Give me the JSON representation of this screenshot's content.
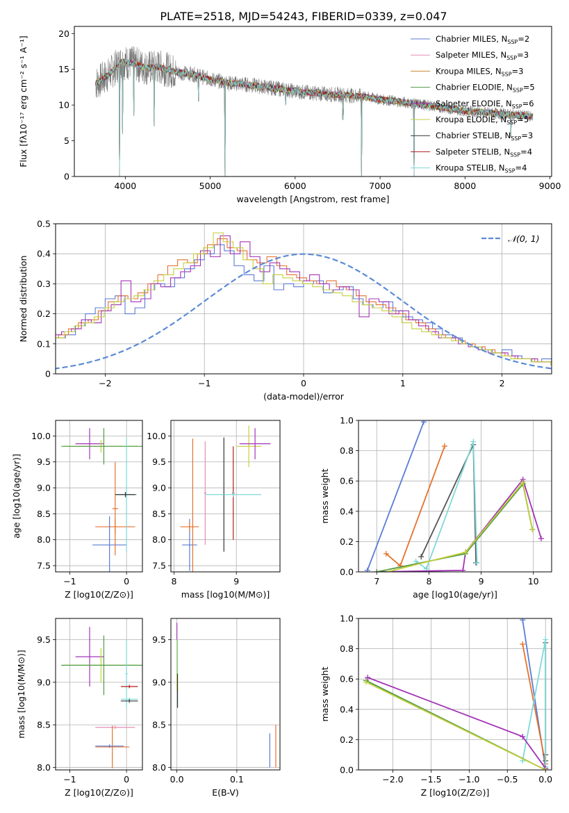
{
  "figure": {
    "title": "PLATE=2518, MJD=54243, FIBERID=0339, z=0.047"
  },
  "chart_data": [
    {
      "id": "spectrum",
      "type": "line",
      "xlabel": "wavelength [Angstrom, rest frame]",
      "ylabel": "Flux [fλ10⁻¹⁷ erg cm⁻² s⁻¹ A⁻¹]",
      "xlim": [
        3400,
        9020
      ],
      "ylim": [
        0,
        21
      ],
      "xticks": [
        4000,
        5000,
        6000,
        7000,
        8000,
        9000
      ],
      "yticks": [
        0,
        5,
        10,
        15,
        20
      ],
      "grid": false,
      "legend_position": "top-right",
      "legend": [
        {
          "label": "Chabrier MILES, N_SSP=2",
          "color": "#5b7bd6"
        },
        {
          "label": "Salpeter MILES, N_SSP=3",
          "color": "#e48fb7"
        },
        {
          "label": "Kroupa MILES, N_SSP=3",
          "color": "#c98a2e"
        },
        {
          "label": "Chabrier ELODIE, N_SSP=5",
          "color": "#4f9a45"
        },
        {
          "label": "Salpeter ELODIE, N_SSP=6",
          "color": "#a233b8"
        },
        {
          "label": "Kroupa ELODIE, N_SSP=5",
          "color": "#c4cf3c"
        },
        {
          "label": "Chabrier STELIB, N_SSP=3",
          "color": "#333333"
        },
        {
          "label": "Salpeter STELIB, N_SSP=4",
          "color": "#b31b1b"
        },
        {
          "label": "Kroupa STELIB, N_SSP=4",
          "color": "#7fd8d8"
        }
      ],
      "continuum": {
        "x": [
          3650,
          3800,
          3950,
          4100,
          4250,
          4400,
          4600,
          4800,
          5000,
          5200,
          5400,
          5600,
          5800,
          6000,
          6200,
          6400,
          6600,
          6800,
          7000,
          7200,
          7400,
          7600,
          7800,
          8000,
          8200,
          8400,
          8600,
          8800
        ],
        "y": [
          13.0,
          14.2,
          16.0,
          15.8,
          15.2,
          15.3,
          14.6,
          14.3,
          13.6,
          13.1,
          12.9,
          12.6,
          12.3,
          11.9,
          11.7,
          11.5,
          11.4,
          11.2,
          10.8,
          10.5,
          10.2,
          9.9,
          9.5,
          9.2,
          9.0,
          8.8,
          8.6,
          8.4
        ]
      },
      "absorption_spikes": [
        {
          "x": 3933,
          "y": 0
        },
        {
          "x": 3968,
          "y": 6.0
        },
        {
          "x": 4101,
          "y": 8.5
        },
        {
          "x": 4340,
          "y": 7.0
        },
        {
          "x": 4861,
          "y": 10.5
        },
        {
          "x": 5175,
          "y": 0
        },
        {
          "x": 5890,
          "y": 10.0
        },
        {
          "x": 6563,
          "y": 8.0
        },
        {
          "x": 6780,
          "y": 0
        },
        {
          "x": 7400,
          "y": 0
        },
        {
          "x": 8542,
          "y": 5.5
        }
      ]
    },
    {
      "id": "residuals",
      "type": "histogram",
      "xlabel": "(data-model)/error",
      "ylabel": "Normed distribution",
      "xlim": [
        -2.5,
        2.5
      ],
      "ylim": [
        0,
        0.5
      ],
      "xticks": [
        -2,
        -1,
        0,
        1,
        2
      ],
      "yticks": [
        0.0,
        0.1,
        0.2,
        0.3,
        0.4,
        0.5
      ],
      "grid": true,
      "legend_position": "top-right",
      "legend": [
        {
          "label": "𝒩(0, 1)",
          "color": "#5b8ad6",
          "style": "dashed"
        }
      ],
      "bin_width": 0.1,
      "series": [
        {
          "color": "#5b7bd6",
          "values": [
            0.03,
            0.03,
            0.05,
            0.05,
            0.08,
            0.07,
            0.08,
            0.12,
            0.1,
            0.09,
            0.12,
            0.13,
            0.16,
            0.2,
            0.22,
            0.25,
            0.26,
            0.2,
            0.22,
            0.28,
            0.3,
            0.29,
            0.32,
            0.35,
            0.38,
            0.4,
            0.43,
            0.41,
            0.36,
            0.33,
            0.31,
            0.36,
            0.28,
            0.3,
            0.29,
            0.3,
            0.31,
            0.27,
            0.28,
            0.29,
            0.25,
            0.23,
            0.22,
            0.24,
            0.21,
            0.19,
            0.18,
            0.17,
            0.15,
            0.13,
            0.12,
            0.1,
            0.09,
            0.08,
            0.07,
            0.08,
            0.06,
            0.05,
            0.04,
            0.05,
            0.04,
            0.04,
            0.03,
            0.03,
            0.03,
            0.02,
            0.02,
            0.02,
            0.02,
            0.02
          ]
        },
        {
          "color": "#e4722e",
          "values": [
            0.04,
            0.03,
            0.05,
            0.07,
            0.08,
            0.09,
            0.09,
            0.1,
            0.11,
            0.12,
            0.13,
            0.15,
            0.17,
            0.18,
            0.21,
            0.24,
            0.26,
            0.25,
            0.27,
            0.3,
            0.33,
            0.36,
            0.38,
            0.37,
            0.4,
            0.43,
            0.45,
            0.42,
            0.41,
            0.38,
            0.37,
            0.39,
            0.36,
            0.33,
            0.32,
            0.31,
            0.3,
            0.31,
            0.29,
            0.28,
            0.26,
            0.24,
            0.23,
            0.22,
            0.2,
            0.18,
            0.17,
            0.15,
            0.13,
            0.12,
            0.11,
            0.1,
            0.09,
            0.08,
            0.07,
            0.06,
            0.05,
            0.05,
            0.04,
            0.04,
            0.03,
            0.03,
            0.03,
            0.02,
            0.02,
            0.02,
            0.02,
            0.02,
            0.02,
            0.02
          ]
        },
        {
          "color": "#a233b8",
          "values": [
            0.03,
            0.04,
            0.05,
            0.06,
            0.07,
            0.09,
            0.08,
            0.11,
            0.12,
            0.13,
            0.14,
            0.15,
            0.18,
            0.17,
            0.21,
            0.23,
            0.31,
            0.24,
            0.25,
            0.3,
            0.29,
            0.32,
            0.34,
            0.36,
            0.41,
            0.39,
            0.46,
            0.4,
            0.44,
            0.39,
            0.34,
            0.37,
            0.35,
            0.34,
            0.31,
            0.33,
            0.3,
            0.28,
            0.29,
            0.28,
            0.19,
            0.25,
            0.24,
            0.2,
            0.21,
            0.18,
            0.16,
            0.14,
            0.12,
            0.12,
            0.1,
            0.09,
            0.08,
            0.07,
            0.07,
            0.06,
            0.05,
            0.05,
            0.04,
            0.04,
            0.03,
            0.03,
            0.03,
            0.03,
            0.02,
            0.02,
            0.02,
            0.02,
            0.02,
            0.02
          ]
        },
        {
          "color": "#c4cf3c",
          "values": [
            0.03,
            0.04,
            0.06,
            0.06,
            0.07,
            0.08,
            0.09,
            0.1,
            0.11,
            0.12,
            0.14,
            0.16,
            0.17,
            0.19,
            0.22,
            0.24,
            0.25,
            0.26,
            0.28,
            0.31,
            0.33,
            0.35,
            0.37,
            0.4,
            0.42,
            0.47,
            0.44,
            0.42,
            0.38,
            0.35,
            0.3,
            0.33,
            0.32,
            0.31,
            0.3,
            0.29,
            0.28,
            0.27,
            0.26,
            0.24,
            0.23,
            0.22,
            0.21,
            0.19,
            0.17,
            0.15,
            0.14,
            0.13,
            0.12,
            0.11,
            0.1,
            0.09,
            0.08,
            0.07,
            0.06,
            0.05,
            0.05,
            0.04,
            0.04,
            0.03,
            0.03,
            0.03,
            0.03,
            0.02,
            0.02,
            0.02,
            0.02,
            0.02,
            0.02,
            0.02
          ]
        }
      ],
      "gaussian": {
        "mean": 0,
        "sigma": 1
      }
    },
    {
      "id": "age-vs-Z",
      "type": "scatter",
      "xlabel": "Z [log10(Z/Z⊙)]",
      "ylabel": "age  [log10(age/yr)]",
      "xlim": [
        -1.25,
        0.28
      ],
      "ylim": [
        7.38,
        10.3
      ],
      "xticks": [
        -1,
        0
      ],
      "yticks": [
        7.5,
        8.0,
        8.5,
        9.0,
        9.5,
        10.0
      ],
      "grid": true,
      "points": [
        {
          "x": -0.65,
          "y": 9.85,
          "xerr": 0.25,
          "yerr": 0.3,
          "color": "#a233b8"
        },
        {
          "x": -0.45,
          "y": 9.8,
          "xerr": 0.65,
          "yerr": 0.12,
          "color": "#c4cf3c"
        },
        {
          "x": -0.4,
          "y": 9.8,
          "xerr": 0.75,
          "yerr": 0.35,
          "color": "#4f9a45"
        },
        {
          "x": -0.2,
          "y": 8.25,
          "xerr": 0.35,
          "yerr": 0.15,
          "color": "#e4722e"
        },
        {
          "x": -0.3,
          "y": 7.9,
          "xerr": 0.3,
          "yerr": 0.55,
          "color": "#5b7bd6"
        },
        {
          "x": -0.2,
          "y": 8.6,
          "xerr": 0.05,
          "yerr": 0.9,
          "color": "#e4722e"
        },
        {
          "x": 0.0,
          "y": 8.87,
          "xerr": 0.18,
          "yerr": 1.1,
          "color": "#7fd8d8"
        },
        {
          "x": -0.02,
          "y": 8.87,
          "xerr": 0.18,
          "yerr": 0.05,
          "color": "#333333"
        }
      ]
    },
    {
      "id": "age-vs-mass",
      "type": "scatter",
      "xlabel": "mass [log10(M/M⊙)]",
      "ylabel": "",
      "xlim": [
        7.95,
        9.7
      ],
      "ylim": [
        7.38,
        10.3
      ],
      "xticks": [
        8,
        9
      ],
      "yticks": [
        7.5,
        8.0,
        8.5,
        9.0,
        9.5,
        10.0
      ],
      "grid": true,
      "points": [
        {
          "x": 8.25,
          "y": 7.9,
          "xerr": 0.12,
          "yerr": 0.5,
          "color": "#5b7bd6"
        },
        {
          "x": 8.25,
          "y": 8.25,
          "xerr": 0.15,
          "yerr": 0.1,
          "color": "#e4722e"
        },
        {
          "x": 8.3,
          "y": 8.25,
          "xerr": 0.02,
          "yerr": 1.7,
          "color": "#e4722e"
        },
        {
          "x": 8.5,
          "y": 8.9,
          "xerr": 0.02,
          "yerr": 1.0,
          "color": "#e48fb7"
        },
        {
          "x": 8.8,
          "y": 8.87,
          "xerr": 0.02,
          "yerr": 1.1,
          "color": "#333333"
        },
        {
          "x": 8.95,
          "y": 8.9,
          "xerr": 0.02,
          "yerr": 0.9,
          "color": "#b31b1b"
        },
        {
          "x": 8.95,
          "y": 8.87,
          "xerr": 0.45,
          "yerr": 0.05,
          "color": "#7fd8d8"
        },
        {
          "x": 9.2,
          "y": 9.8,
          "xerr": 0.2,
          "yerr": 0.4,
          "color": "#c4cf3c"
        },
        {
          "x": 9.3,
          "y": 9.85,
          "xerr": 0.25,
          "yerr": 0.3,
          "color": "#a233b8"
        }
      ]
    },
    {
      "id": "massweight-vs-age",
      "type": "line",
      "xlabel": "age  [log10(age/yr)]",
      "ylabel": "mass weight",
      "xlim": [
        6.65,
        10.35
      ],
      "ylim": [
        0,
        1.0
      ],
      "xticks": [
        7,
        8,
        9,
        10
      ],
      "yticks": [
        0.0,
        0.2,
        0.4,
        0.6,
        0.8,
        1.0
      ],
      "grid": true,
      "series": [
        {
          "color": "#5b7bd6",
          "x": [
            6.82,
            7.9
          ],
          "y": [
            0.01,
            0.99
          ]
        },
        {
          "color": "#e4722e",
          "x": [
            7.18,
            7.45,
            8.3
          ],
          "y": [
            0.12,
            0.04,
            0.83
          ]
        },
        {
          "color": "#555555",
          "x": [
            7.85,
            8.85,
            8.9
          ],
          "y": [
            0.1,
            0.84,
            0.06
          ]
        },
        {
          "color": "#7fd8d8",
          "x": [
            7.75,
            7.95,
            8.85,
            8.92
          ],
          "y": [
            0.07,
            0.02,
            0.86,
            0.06
          ]
        },
        {
          "color": "#a233b8",
          "x": [
            7.0,
            8.65,
            8.7,
            9.8,
            10.15
          ],
          "y": [
            0.0,
            0.01,
            0.13,
            0.61,
            0.22
          ]
        },
        {
          "color": "#4f9a45",
          "x": [
            7.0,
            8.7,
            9.8,
            9.98
          ],
          "y": [
            0.0,
            0.12,
            0.58,
            0.28
          ]
        },
        {
          "color": "#c4cf3c",
          "x": [
            7.2,
            8.7,
            9.8,
            9.98
          ],
          "y": [
            0.0,
            0.13,
            0.59,
            0.28
          ]
        }
      ]
    },
    {
      "id": "mass-vs-Z",
      "type": "scatter",
      "xlabel": "Z [log10(Z/Z⊙)]",
      "ylabel": "mass [log10(M/M⊙)]",
      "xlim": [
        -1.25,
        0.28
      ],
      "ylim": [
        7.97,
        9.75
      ],
      "xticks": [
        -1,
        0
      ],
      "yticks": [
        8.0,
        8.5,
        9.0,
        9.5
      ],
      "grid": true,
      "points": [
        {
          "x": -0.65,
          "y": 9.3,
          "xerr": 0.25,
          "yerr": 0.35,
          "color": "#a233b8"
        },
        {
          "x": -0.45,
          "y": 9.2,
          "xerr": 0.65,
          "yerr": 0.2,
          "color": "#c4cf3c"
        },
        {
          "x": -0.4,
          "y": 9.2,
          "xerr": 0.75,
          "yerr": 0.35,
          "color": "#4f9a45"
        },
        {
          "x": -0.2,
          "y": 8.47,
          "xerr": 0.35,
          "yerr": 0.02,
          "color": "#e48fb7"
        },
        {
          "x": -0.25,
          "y": 8.24,
          "xerr": 0.3,
          "yerr": 0.25,
          "color": "#e4722e"
        },
        {
          "x": -0.3,
          "y": 8.25,
          "xerr": 0.25,
          "yerr": 0.02,
          "color": "#5b7bd6"
        },
        {
          "x": 0.0,
          "y": 9.1,
          "xerr": 0.02,
          "yerr": 0.4,
          "color": "#7fd8d8"
        },
        {
          "x": 0.05,
          "y": 8.95,
          "xerr": 0.15,
          "yerr": 0.02,
          "color": "#b31b1b"
        },
        {
          "x": 0.05,
          "y": 8.8,
          "xerr": 0.15,
          "yerr": 0.02,
          "color": "#7fd8d8"
        },
        {
          "x": 0.05,
          "y": 8.78,
          "xerr": 0.15,
          "yerr": 0.02,
          "color": "#333333"
        }
      ]
    },
    {
      "id": "mass-vs-EBV",
      "type": "scatter",
      "xlabel": "E(B-V)",
      "ylabel": "",
      "xlim": [
        -0.01,
        0.172
      ],
      "ylim": [
        7.97,
        9.75
      ],
      "xticks": [
        0.0,
        0.1
      ],
      "yticks": [
        8.0,
        8.5,
        9.0,
        9.5
      ],
      "grid": true,
      "points": [
        {
          "x": 0.0,
          "y": 9.3,
          "xerr": 0.0,
          "yerr": 0.4,
          "color": "#a233b8"
        },
        {
          "x": 0.0,
          "y": 9.2,
          "xerr": 0.0,
          "yerr": 0.3,
          "color": "#c4cf3c"
        },
        {
          "x": 0.001,
          "y": 9.1,
          "xerr": 0.0,
          "yerr": 0.4,
          "color": "#7fd8d8"
        },
        {
          "x": 0.001,
          "y": 8.9,
          "xerr": 0.0,
          "yerr": 0.2,
          "color": "#333333"
        },
        {
          "x": 0.155,
          "y": 8.2,
          "xerr": 0.0,
          "yerr": 0.2,
          "color": "#5b7bd6"
        },
        {
          "x": 0.165,
          "y": 8.25,
          "xerr": 0.0,
          "yerr": 0.25,
          "color": "#e4722e"
        }
      ]
    },
    {
      "id": "massweight-vs-Z",
      "type": "line",
      "xlabel": "Z [log10(Z/Z⊙)]",
      "ylabel": "mass weight",
      "xlim": [
        -2.45,
        0.08
      ],
      "ylim": [
        0,
        1.0
      ],
      "xticks": [
        -2.0,
        -1.5,
        -1.0,
        -0.5,
        0.0
      ],
      "yticks": [
        0.0,
        0.2,
        0.4,
        0.6,
        0.8,
        1.0
      ],
      "grid": true,
      "series": [
        {
          "color": "#5b7bd6",
          "x": [
            -0.3,
            0.0
          ],
          "y": [
            0.99,
            0.01
          ]
        },
        {
          "color": "#e4722e",
          "x": [
            -0.3,
            0.0
          ],
          "y": [
            0.83,
            0.04
          ]
        },
        {
          "color": "#555555",
          "x": [
            0.0,
            0.0,
            0.0
          ],
          "y": [
            0.84,
            0.1,
            0.06
          ]
        },
        {
          "color": "#7fd8d8",
          "x": [
            -0.3,
            0.0,
            0.0
          ],
          "y": [
            0.06,
            0.86,
            0.02
          ]
        },
        {
          "color": "#a233b8",
          "x": [
            -2.33,
            -0.3,
            0.0
          ],
          "y": [
            0.61,
            0.22,
            0.01
          ]
        },
        {
          "color": "#4f9a45",
          "x": [
            -2.35,
            0.0
          ],
          "y": [
            0.59,
            0.0
          ]
        },
        {
          "color": "#c4cf3c",
          "x": [
            -2.35,
            0.0
          ],
          "y": [
            0.58,
            0.0
          ]
        }
      ]
    }
  ]
}
